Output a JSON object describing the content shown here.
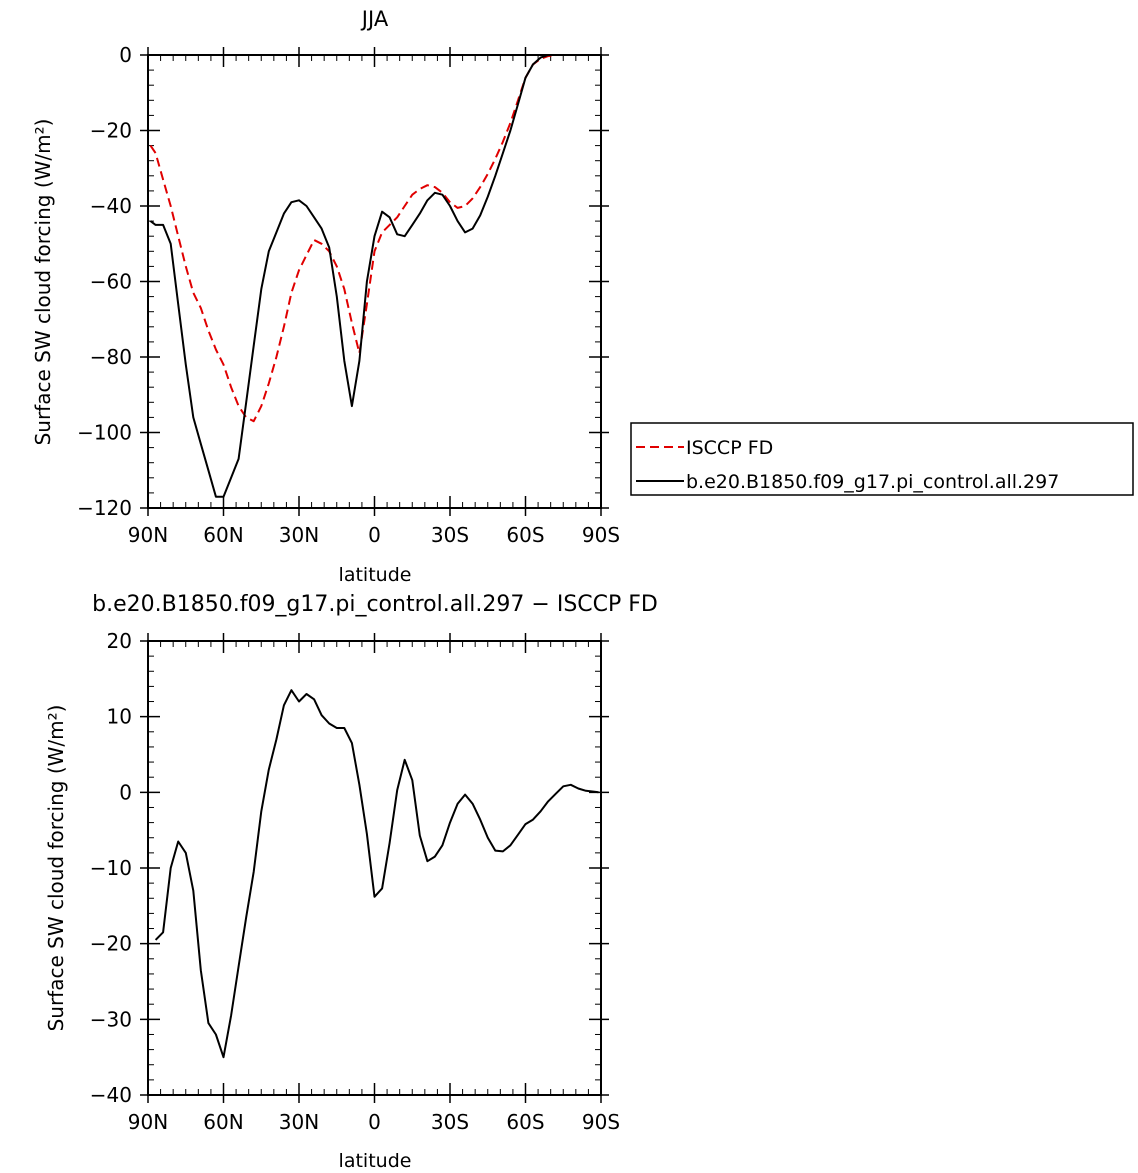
{
  "chart_data": [
    {
      "type": "line",
      "title": "JJA",
      "xlabel": "latitude",
      "ylabel": "Surface SW cloud forcing (W/m²)",
      "xlim": [
        90,
        -90
      ],
      "ylim": [
        -120,
        0
      ],
      "x_ticks": [
        90,
        60,
        30,
        0,
        -30,
        -60,
        -90
      ],
      "x_tick_labels": [
        "90N",
        "60N",
        "30N",
        "0",
        "30S",
        "60S",
        "90S"
      ],
      "y_ticks": [
        0,
        -20,
        -40,
        -60,
        -80,
        -100,
        -120
      ],
      "y_tick_labels": [
        "0",
        "−20",
        "−40",
        "−60",
        "−80",
        "−100",
        "−120"
      ],
      "legend_position": "right of plot, lower half",
      "series": [
        {
          "name": "ISCCP FD",
          "color": "#e00000",
          "dash": "dashed",
          "x": [
            89,
            87,
            84,
            81,
            78,
            75,
            72,
            69,
            66,
            63,
            60,
            57,
            54,
            51,
            48,
            45,
            42,
            39,
            36,
            33,
            30,
            27,
            24,
            21,
            18,
            15,
            12,
            9,
            6,
            3,
            0,
            -3,
            -6,
            -9,
            -12,
            -15,
            -18,
            -21,
            -24,
            -27,
            -30,
            -33,
            -36,
            -39,
            -42,
            -45,
            -48,
            -51,
            -54,
            -57,
            -60,
            -63,
            -66,
            -69,
            -72,
            -75,
            -78,
            -81,
            -84,
            -87,
            -89
          ],
          "y": [
            -24,
            -26,
            -33,
            -40,
            -48,
            -56,
            -63,
            -67,
            -73,
            -78,
            -82,
            -88,
            -93,
            -96,
            -97,
            -93,
            -87,
            -80,
            -72,
            -63,
            -57,
            -53,
            -49,
            -50,
            -52,
            -56,
            -62,
            -71,
            -79,
            -66,
            -52,
            -47,
            -45,
            -43,
            -40,
            -37,
            -35.5,
            -34.5,
            -35,
            -36.5,
            -39,
            -40.5,
            -40,
            -38,
            -35,
            -31.5,
            -27.5,
            -23,
            -18,
            -12,
            -6,
            -2.5,
            -1,
            -0.3,
            0,
            0,
            0,
            0,
            0,
            0,
            0
          ]
        },
        {
          "name": "b.e20.B1850.f09_g17.pi_control.all.297",
          "color": "#000000",
          "dash": "solid",
          "x": [
            89,
            87,
            84,
            81,
            78,
            75,
            72,
            69,
            66,
            63,
            60,
            57,
            54,
            51,
            48,
            45,
            42,
            39,
            36,
            33,
            30,
            27,
            24,
            21,
            18,
            15,
            12,
            9,
            6,
            3,
            0,
            -3,
            -6,
            -9,
            -12,
            -15,
            -18,
            -21,
            -24,
            -27,
            -30,
            -33,
            -36,
            -39,
            -42,
            -45,
            -48,
            -51,
            -54,
            -57,
            -60,
            -63,
            -66,
            -69,
            -72,
            -75,
            -78,
            -81,
            -84,
            -87,
            -89
          ],
          "y": [
            -44,
            -45,
            -45,
            -50,
            -66,
            -82,
            -96,
            -103,
            -110,
            -117,
            -117,
            -112,
            -107,
            -92,
            -77,
            -62,
            -52,
            -47,
            -42,
            -39,
            -38.5,
            -40,
            -43,
            -46,
            -51,
            -64,
            -81,
            -93,
            -81,
            -60,
            -48,
            -41.5,
            -43,
            -47.5,
            -48,
            -45,
            -42,
            -38.5,
            -36.5,
            -37,
            -40,
            -44,
            -47,
            -46,
            -42.5,
            -37.5,
            -32,
            -26,
            -20,
            -13,
            -6,
            -2.5,
            -0.7,
            0,
            0,
            0,
            0,
            0,
            0,
            0,
            0
          ]
        }
      ]
    },
    {
      "type": "line",
      "title": "b.e20.B1850.f09_g17.pi_control.all.297 − ISCCP FD",
      "xlabel": "latitude",
      "ylabel": "Surface SW cloud forcing (W/m²)",
      "xlim": [
        90,
        -90
      ],
      "ylim": [
        -40,
        20
      ],
      "x_ticks": [
        90,
        60,
        30,
        0,
        -30,
        -60,
        -90
      ],
      "x_tick_labels": [
        "90N",
        "60N",
        "30N",
        "0",
        "30S",
        "60S",
        "90S"
      ],
      "y_ticks": [
        20,
        10,
        0,
        -10,
        -20,
        -30,
        -40
      ],
      "y_tick_labels": [
        "20",
        "10",
        "0",
        "−10",
        "−20",
        "−30",
        "−40"
      ],
      "series": [
        {
          "color": "#000000",
          "dash": "solid",
          "x": [
            87,
            84,
            81,
            78,
            75,
            72,
            69,
            66,
            63,
            60,
            57,
            54,
            51,
            48,
            45,
            42,
            39,
            36,
            33,
            30,
            27,
            24,
            21,
            18,
            15,
            12,
            9,
            6,
            3,
            0,
            -3,
            -6,
            -9,
            -12,
            -15,
            -18,
            -21,
            -24,
            -27,
            -30,
            -33,
            -36,
            -39,
            -42,
            -45,
            -48,
            -51,
            -54,
            -57,
            -60,
            -63,
            -66,
            -69,
            -72,
            -75,
            -78,
            -81,
            -84,
            -87,
            -89
          ],
          "y": [
            -19.5,
            -18.5,
            -10,
            -6.5,
            -8,
            -13,
            -23.5,
            -30.5,
            -32,
            -35,
            -29.5,
            -23,
            -16.5,
            -10.5,
            -2.5,
            3,
            7,
            11.5,
            13.5,
            12,
            13,
            12.3,
            10.2,
            9.1,
            8.5,
            8.5,
            6.5,
            1,
            -5.5,
            -13.8,
            -12.7,
            -6.7,
            0.3,
            4.3,
            1.6,
            -5.7,
            -9.1,
            -8.5,
            -7,
            -4,
            -1.5,
            -0.3,
            -1.5,
            -3.6,
            -6,
            -7.7,
            -7.8,
            -7,
            -5.6,
            -4.2,
            -3.6,
            -2.5,
            -1.2,
            -0.2,
            0.8,
            1,
            0.5,
            0.2,
            0.1,
            0
          ]
        }
      ]
    }
  ]
}
